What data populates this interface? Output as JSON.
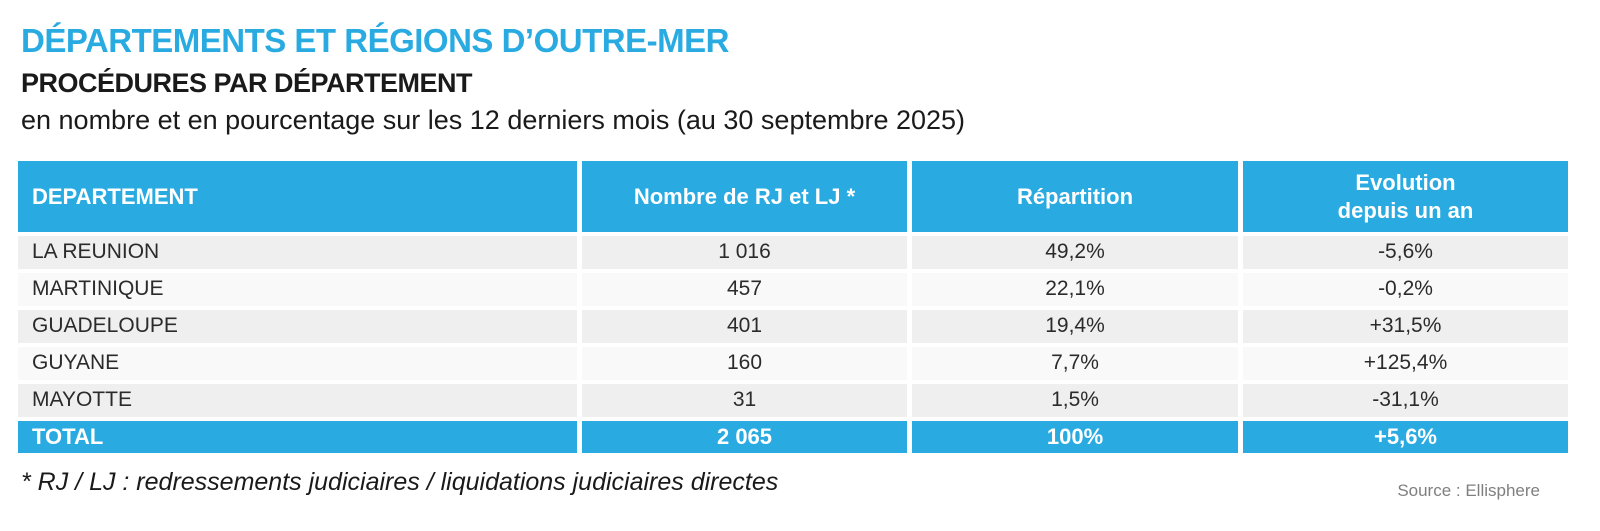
{
  "header": {
    "title": "DÉPARTEMENTS ET RÉGIONS D’OUTRE-MER",
    "subtitle": "PROCÉDURES PAR DÉPARTEMENT",
    "description": "en nombre et en pourcentage sur les 12 derniers mois (au 30 septembre 2025)"
  },
  "colors": {
    "accent_blue": "#29abe2",
    "row_dark": "#efefef",
    "row_light": "#f9f9f9",
    "text_dark": "#1a1a1a",
    "source_gray": "#7f7f7f"
  },
  "table": {
    "columns": [
      {
        "label": "DEPARTEMENT"
      },
      {
        "label": "Nombre de RJ et LJ *"
      },
      {
        "label": "Répartition"
      },
      {
        "label": "Evolution\ndepuis un an"
      }
    ],
    "rows": [
      {
        "name": "LA REUNION",
        "count": "1 016",
        "share": "49,2%",
        "evolution": "-5,6%"
      },
      {
        "name": "MARTINIQUE",
        "count": "457",
        "share": "22,1%",
        "evolution": "-0,2%"
      },
      {
        "name": "GUADELOUPE",
        "count": "401",
        "share": "19,4%",
        "evolution": "+31,5%"
      },
      {
        "name": "GUYANE",
        "count": "160",
        "share": "7,7%",
        "evolution": "+125,4%"
      },
      {
        "name": "MAYOTTE",
        "count": "31",
        "share": "1,5%",
        "evolution": "-31,1%"
      }
    ],
    "total": {
      "label": "TOTAL",
      "count": "2 065",
      "share": "100%",
      "evolution": "+5,6%"
    }
  },
  "footer": {
    "footnote": "* RJ / LJ : redressements judiciaires / liquidations judiciaires directes",
    "source": "Source : Ellisphere"
  }
}
